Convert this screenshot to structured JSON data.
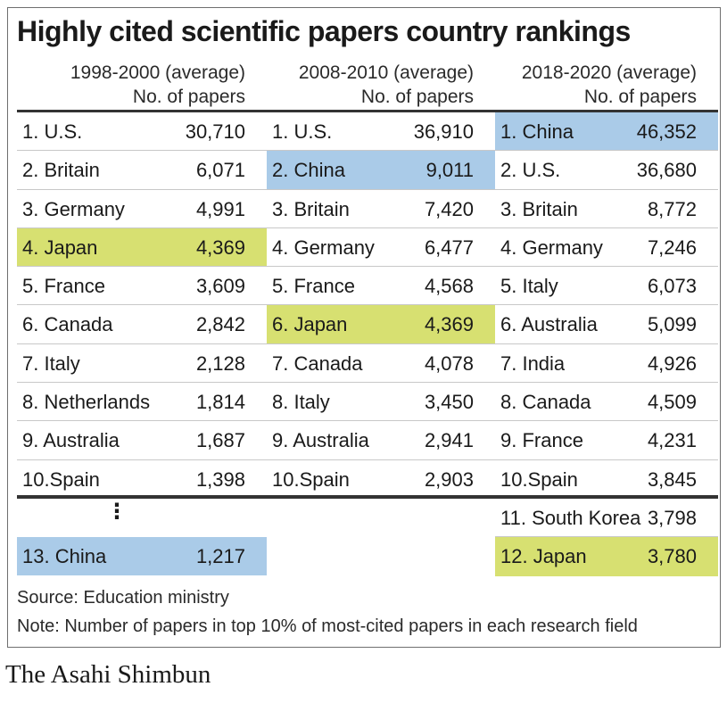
{
  "chart_data": {
    "type": "table",
    "title": "Highly cited scientific papers country rankings",
    "columns": [
      {
        "period": "1998-2000 (average)",
        "unit": "No. of papers",
        "rows": [
          {
            "rank_label": "1. U.S.",
            "value": "30,710"
          },
          {
            "rank_label": "2. Britain",
            "value": "6,071"
          },
          {
            "rank_label": "3. Germany",
            "value": "4,991"
          },
          {
            "rank_label": "4. Japan",
            "value": "4,369",
            "highlight": "japan"
          },
          {
            "rank_label": "5. France",
            "value": "3,609"
          },
          {
            "rank_label": "6. Canada",
            "value": "2,842"
          },
          {
            "rank_label": "7. Italy",
            "value": "2,128"
          },
          {
            "rank_label": "8. Netherlands",
            "value": "1,814"
          },
          {
            "rank_label": "9. Australia",
            "value": "1,687"
          },
          {
            "rank_label": "10.Spain",
            "value": "1,398"
          }
        ],
        "ellipsis": "⋮",
        "extra_rows": [
          {
            "rank_label": "13. China",
            "value": "1,217",
            "highlight": "china"
          }
        ]
      },
      {
        "period": "2008-2010 (average)",
        "unit": "No. of papers",
        "rows": [
          {
            "rank_label": "1. U.S.",
            "value": "36,910"
          },
          {
            "rank_label": "2. China",
            "value": "9,011",
            "highlight": "china"
          },
          {
            "rank_label": "3. Britain",
            "value": "7,420"
          },
          {
            "rank_label": "4. Germany",
            "value": "6,477"
          },
          {
            "rank_label": "5. France",
            "value": "4,568"
          },
          {
            "rank_label": "6. Japan",
            "value": "4,369",
            "highlight": "japan"
          },
          {
            "rank_label": "7. Canada",
            "value": "4,078"
          },
          {
            "rank_label": "8. Italy",
            "value": "3,450"
          },
          {
            "rank_label": "9. Australia",
            "value": "2,941"
          },
          {
            "rank_label": "10.Spain",
            "value": "2,903"
          }
        ],
        "extra_rows": []
      },
      {
        "period": "2018-2020 (average)",
        "unit": "No. of papers",
        "rows": [
          {
            "rank_label": "1. China",
            "value": "46,352",
            "highlight": "china"
          },
          {
            "rank_label": "2. U.S.",
            "value": "36,680"
          },
          {
            "rank_label": "3. Britain",
            "value": "8,772"
          },
          {
            "rank_label": "4. Germany",
            "value": "7,246"
          },
          {
            "rank_label": "5. Italy",
            "value": "6,073"
          },
          {
            "rank_label": "6. Australia",
            "value": "5,099"
          },
          {
            "rank_label": "7. India",
            "value": "4,926"
          },
          {
            "rank_label": "8. Canada",
            "value": "4,509"
          },
          {
            "rank_label": "9. France",
            "value": "4,231"
          },
          {
            "rank_label": "10.Spain",
            "value": "3,845"
          }
        ],
        "extra_rows": [
          {
            "rank_label": "11. South Korea",
            "value": "3,798"
          },
          {
            "rank_label": "12. Japan",
            "value": "3,780",
            "highlight": "japan"
          }
        ]
      }
    ],
    "highlight_colors": {
      "japan": "#d7e071",
      "china": "#aacbe8"
    }
  },
  "source": "Source: Education ministry",
  "note": "Note: Number of papers in top 10% of most-cited papers in each research field",
  "credit": "The Asahi Shimbun"
}
